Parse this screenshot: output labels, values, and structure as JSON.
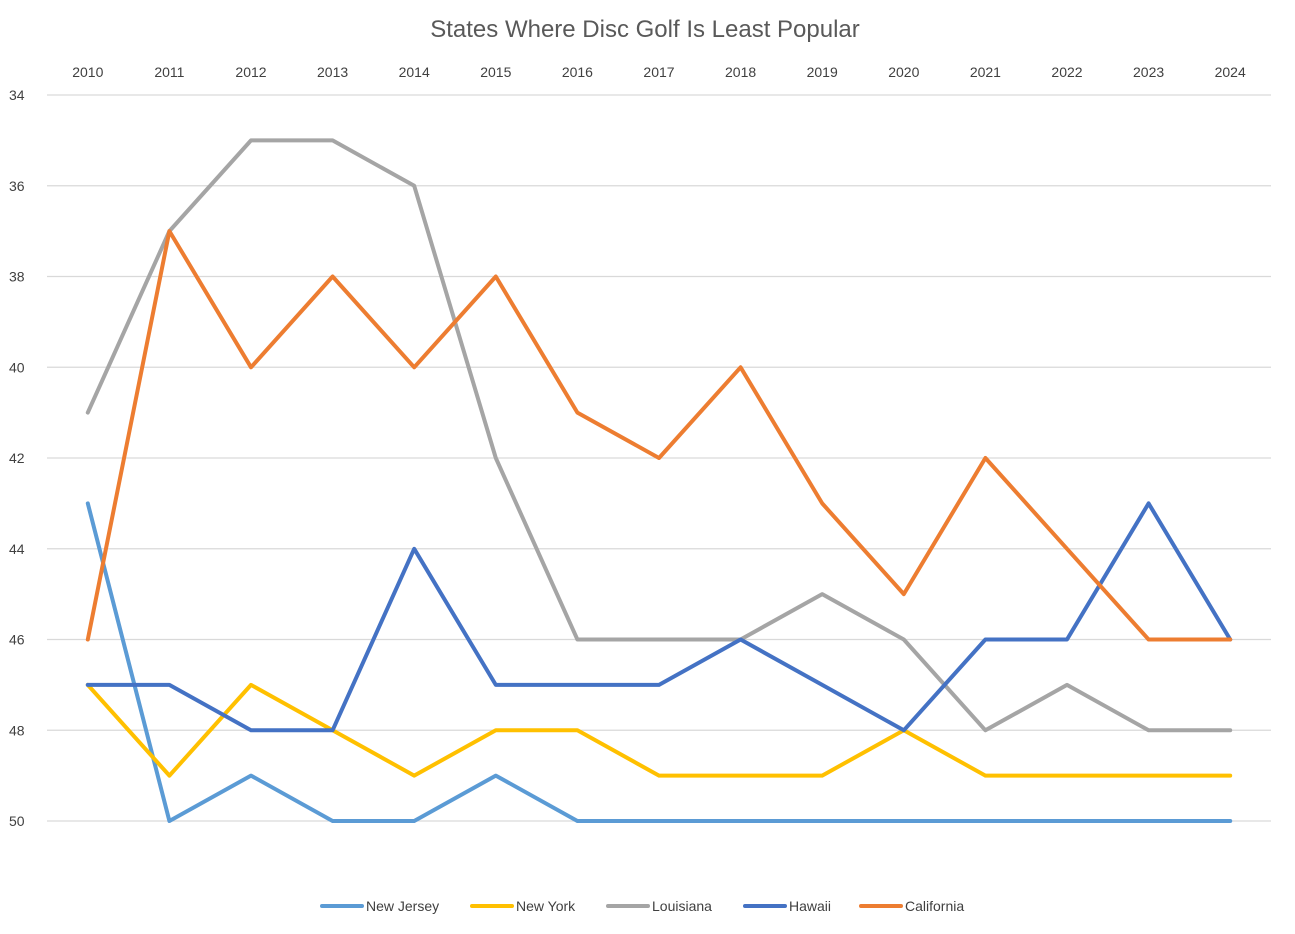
{
  "chart_data": {
    "type": "line",
    "title": "States Where Disc Golf Is Least Popular",
    "xlabel": "",
    "ylabel": "",
    "categories": [
      "2010",
      "2011",
      "2012",
      "2013",
      "2014",
      "2015",
      "2016",
      "2017",
      "2018",
      "2019",
      "2020",
      "2021",
      "2022",
      "2023",
      "2024"
    ],
    "ylim": [
      34,
      50
    ],
    "y_reversed": true,
    "y_ticks": [
      34,
      36,
      38,
      40,
      42,
      44,
      46,
      48,
      50
    ],
    "x_axis_position": "top",
    "grid": true,
    "legend_position": "bottom",
    "series": [
      {
        "name": "New Jersey",
        "color": "#5B9BD5",
        "values": [
          43,
          50,
          49,
          50,
          50,
          49,
          50,
          50,
          50,
          50,
          50,
          50,
          50,
          50,
          50
        ]
      },
      {
        "name": "New York",
        "color": "#FFC000",
        "values": [
          47,
          49,
          47,
          48,
          49,
          48,
          48,
          49,
          49,
          49,
          48,
          49,
          49,
          49,
          49
        ]
      },
      {
        "name": "Louisiana",
        "color": "#A5A5A5",
        "values": [
          41,
          37,
          35,
          35,
          36,
          42,
          46,
          46,
          46,
          45,
          46,
          48,
          47,
          48,
          48
        ]
      },
      {
        "name": "Hawaii",
        "color": "#4472C4",
        "values": [
          47,
          47,
          48,
          48,
          44,
          47,
          47,
          47,
          46,
          47,
          48,
          46,
          46,
          43,
          46
        ]
      },
      {
        "name": "California",
        "color": "#ED7D31",
        "values": [
          46,
          37,
          40,
          38,
          40,
          38,
          41,
          42,
          40,
          43,
          45,
          42,
          44,
          46,
          46
        ]
      }
    ]
  }
}
